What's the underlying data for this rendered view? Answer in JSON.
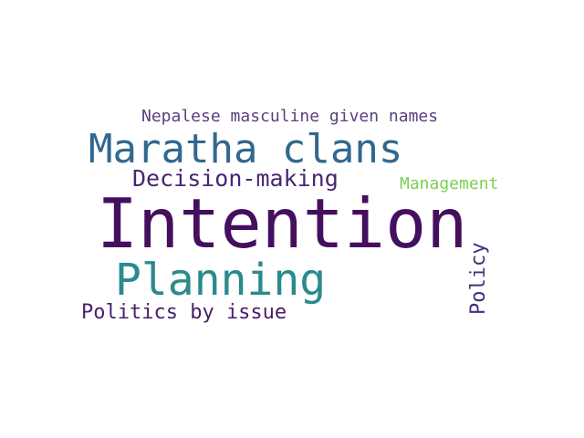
{
  "words": {
    "nepalese": {
      "text": "Nepalese masculine given names",
      "color": "#5b3f7e"
    },
    "maratha": {
      "text": "Maratha clans",
      "color": "#31688e"
    },
    "decision": {
      "text": "Decision-making",
      "color": "#482575"
    },
    "management": {
      "text": "Management",
      "color": "#7ad151"
    },
    "intention": {
      "text": "Intention",
      "color": "#440f5f"
    },
    "planning": {
      "text": "Planning",
      "color": "#2a8a8c"
    },
    "politics": {
      "text": "Politics by issue",
      "color": "#481f6a"
    },
    "policy": {
      "text": "Policy",
      "color": "#472d7b"
    }
  }
}
